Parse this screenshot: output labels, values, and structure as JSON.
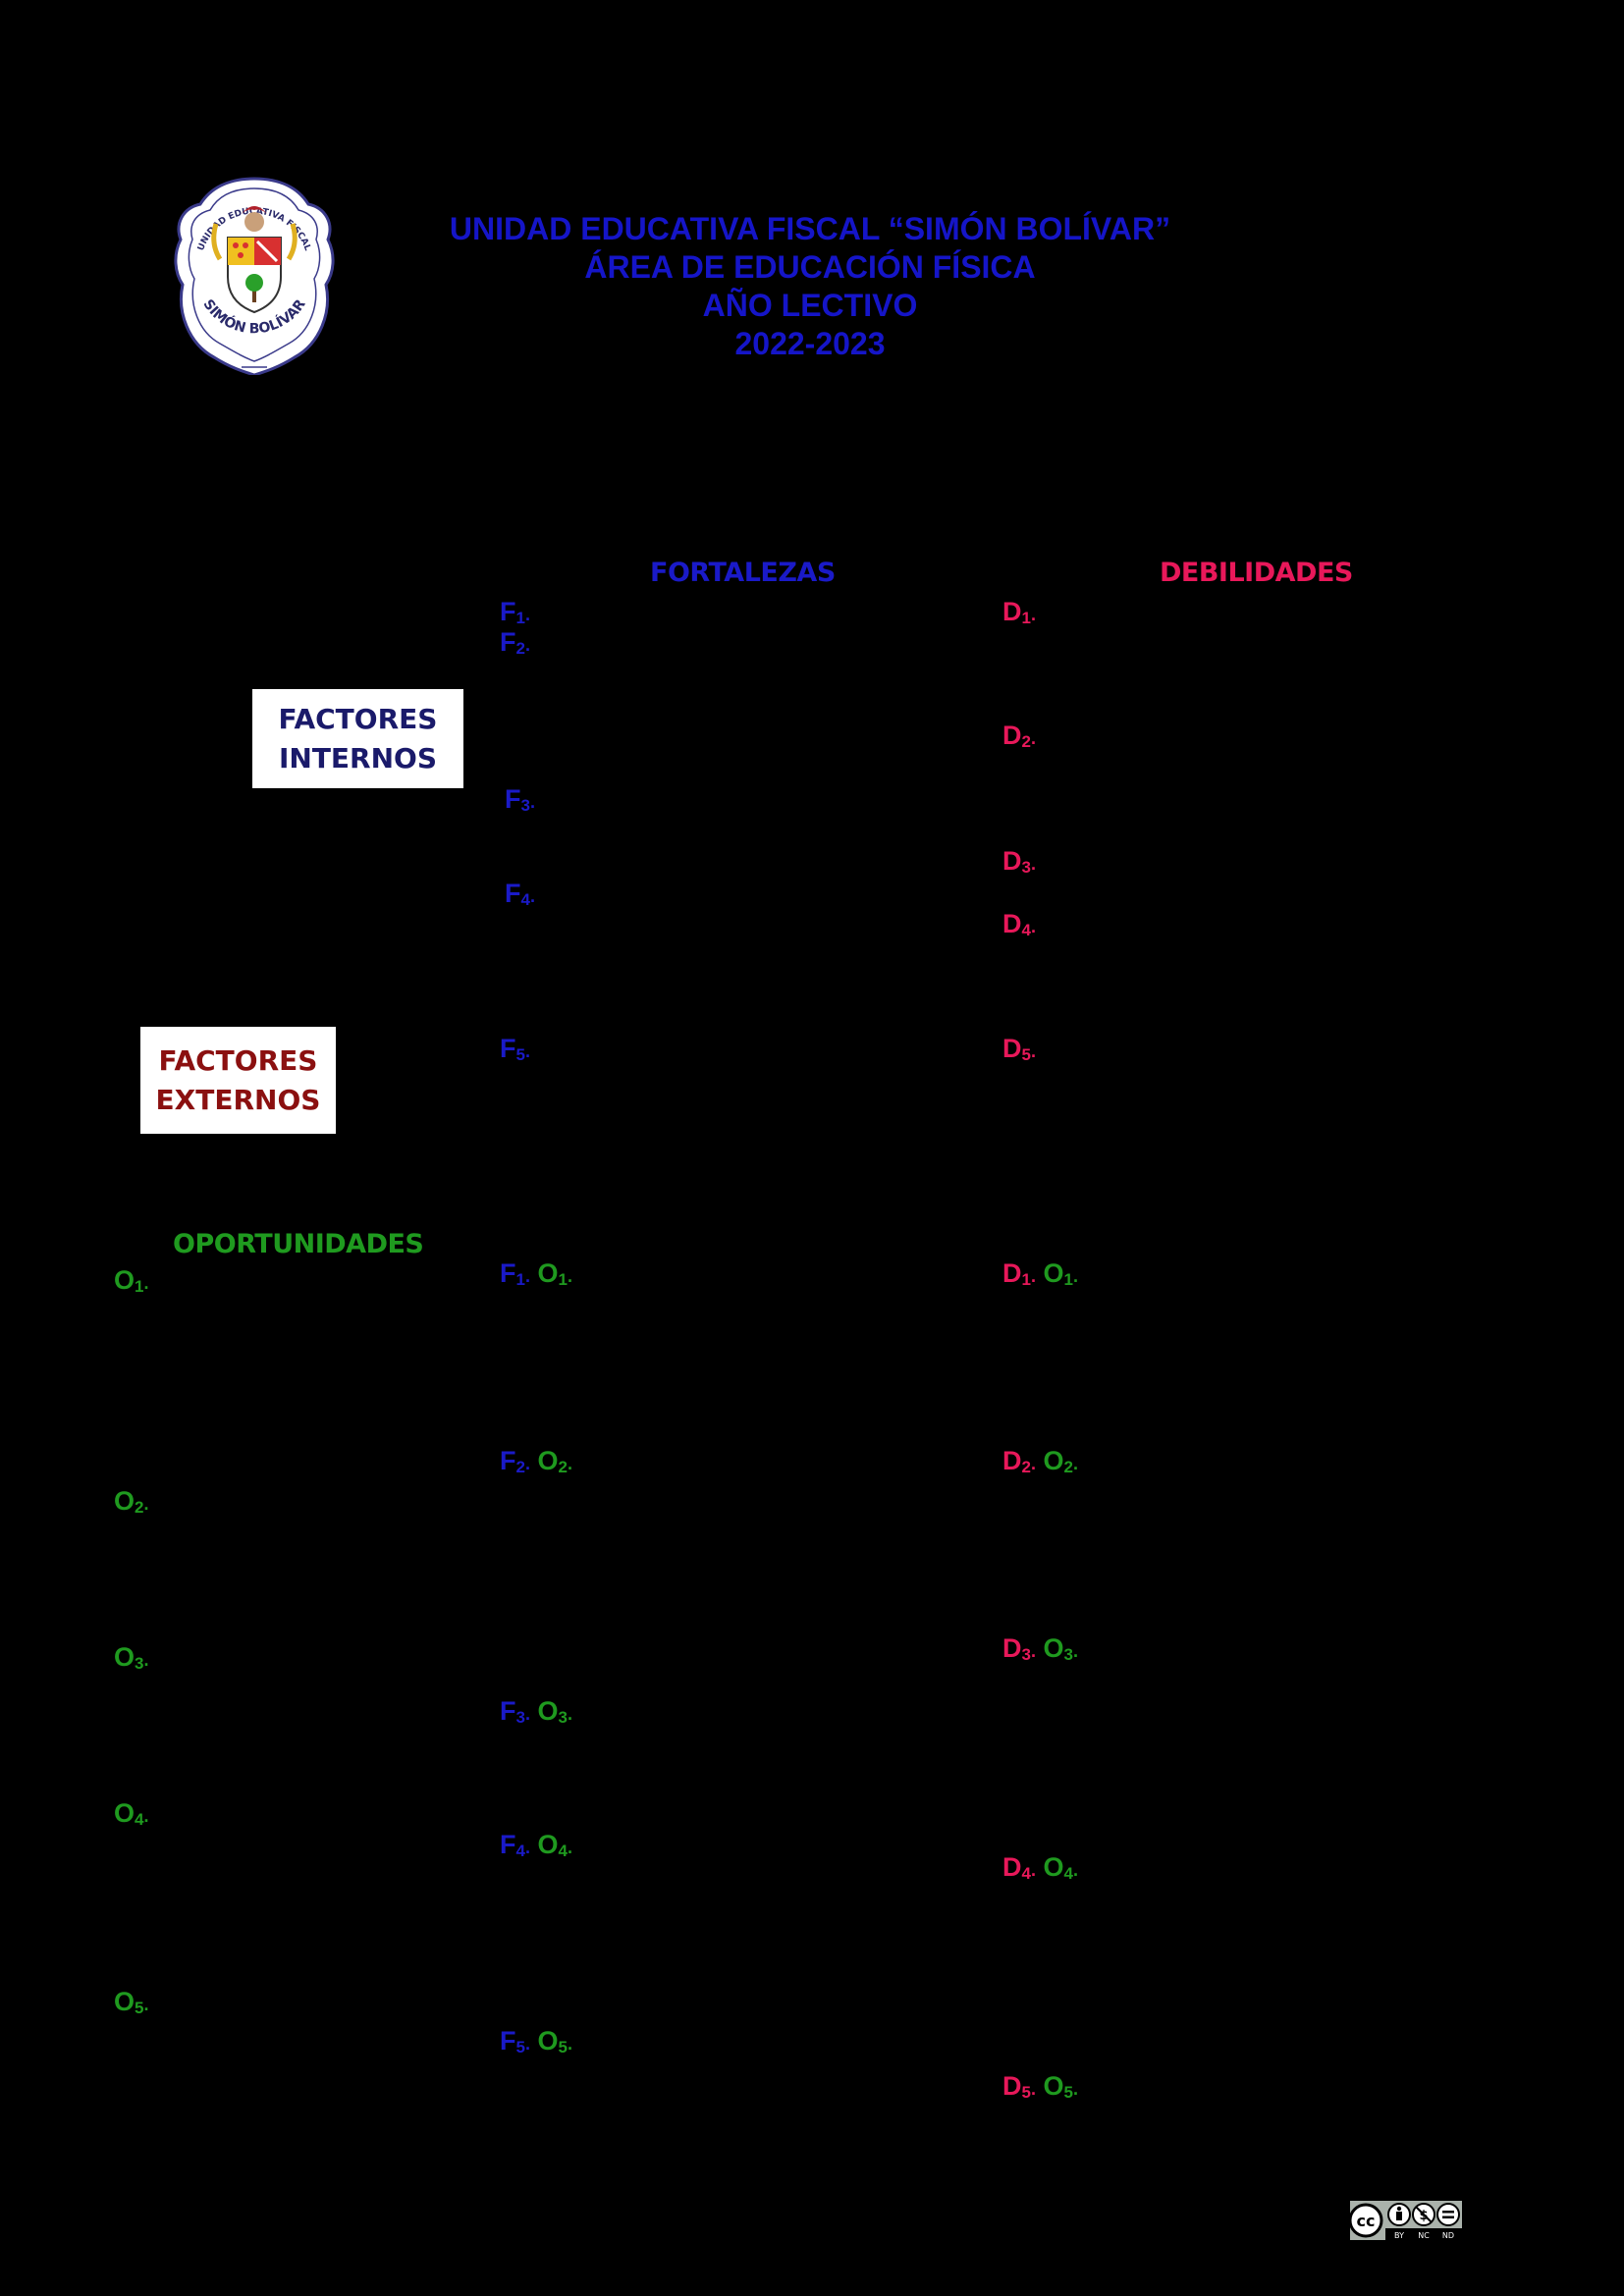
{
  "colors": {
    "header_blue": "#1515c8",
    "fortalezas_blue": "#1a1ac8",
    "debilidades_pink": "#e8185a",
    "oportunidades_green": "#1f9a1f",
    "internos_navy": "#1a1a6a",
    "externos_maroon": "#8b1010"
  },
  "header": {
    "line1": "UNIDAD EDUCATIVA FISCAL “SIMÓN BOLÍVAR”",
    "line2": "ÁREA DE EDUCACIÓN FÍSICA",
    "line3": "AÑO LECTIVO",
    "line4": "2022-2023"
  },
  "seal": {
    "top_text": "UNIDAD EDUCATIVA FISCAL",
    "bottom_text": "SIMÓN BOLÍVAR"
  },
  "columns": {
    "fortalezas": "FORTALEZAS",
    "debilidades": "DEBILIDADES",
    "oportunidades": "OPORTUNIDADES"
  },
  "boxes": {
    "internos_line1": "FACTORES",
    "internos_line2": "INTERNOS",
    "externos_line1": "FACTORES",
    "externos_line2": "EXTERNOS"
  },
  "labels": {
    "F": "F",
    "D": "D",
    "O": "O",
    "dot": "."
  },
  "subs": {
    "n1": "1",
    "n2": "2",
    "n3": "3",
    "n4": "4",
    "n5": "5"
  },
  "license": {
    "cc": "cc",
    "by": "BY",
    "nc": "NC",
    "nd": "ND"
  }
}
